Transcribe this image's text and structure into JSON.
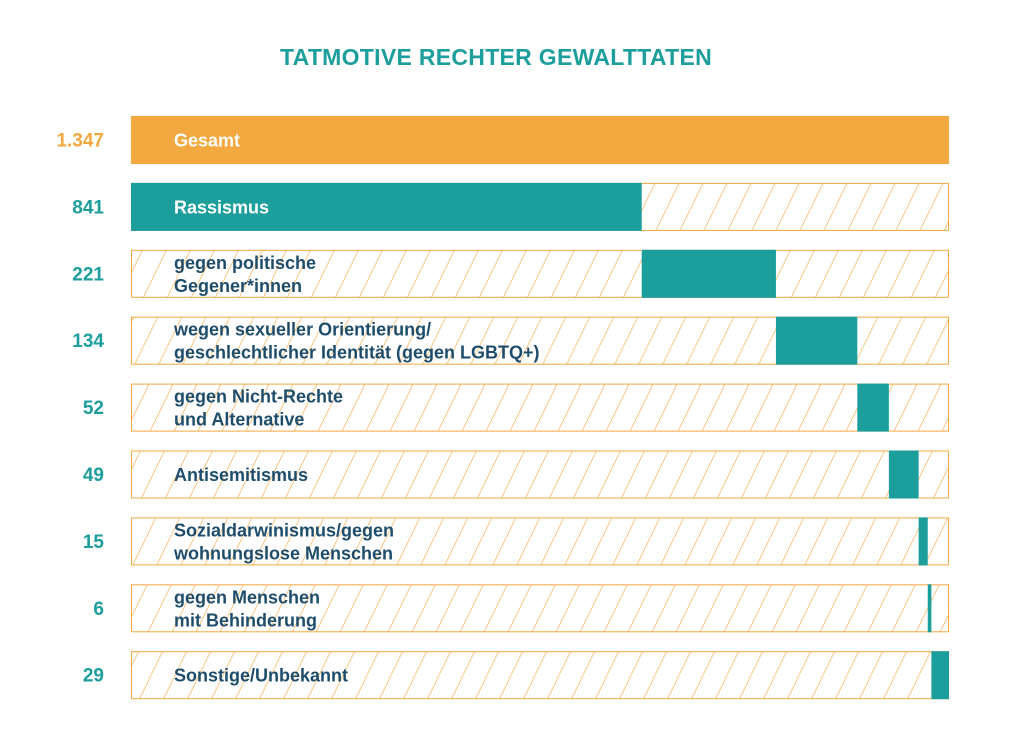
{
  "chart_data": {
    "type": "bar",
    "title": "TATMOTIVE RECHTER GEWALTTATEN",
    "total": {
      "label": "Gesamt",
      "value_label": "1.347",
      "value": 1347
    },
    "categories": [
      [
        "Rassismus"
      ],
      [
        "gegen politische",
        "Gegener*innen"
      ],
      [
        "wegen sexueller Orientierung/",
        "geschlechtlicher Identität (gegen LGBTQ+)"
      ],
      [
        "gegen Nicht-Rechte",
        "und Alternative"
      ],
      [
        "Antisemitismus"
      ],
      [
        "Sozialdarwinismus/gegen",
        "wohnungslose Menschen"
      ],
      [
        "gegen Menschen",
        "mit Behinderung"
      ],
      [
        "Sonstige/Unbekannt"
      ]
    ],
    "series": [
      {
        "values": [
          841,
          221,
          134,
          52,
          49,
          15,
          6,
          29
        ]
      }
    ],
    "layout_style": "stacked-waterfall",
    "colors": {
      "total": "#f4a840",
      "segment": "#1c9e9c",
      "hatch": "#f4a840",
      "label_on_bar": "#ffffff",
      "label_default": "#1e4d6b",
      "value_default": "#1c9e9c",
      "value_total": "#f4a840"
    }
  }
}
